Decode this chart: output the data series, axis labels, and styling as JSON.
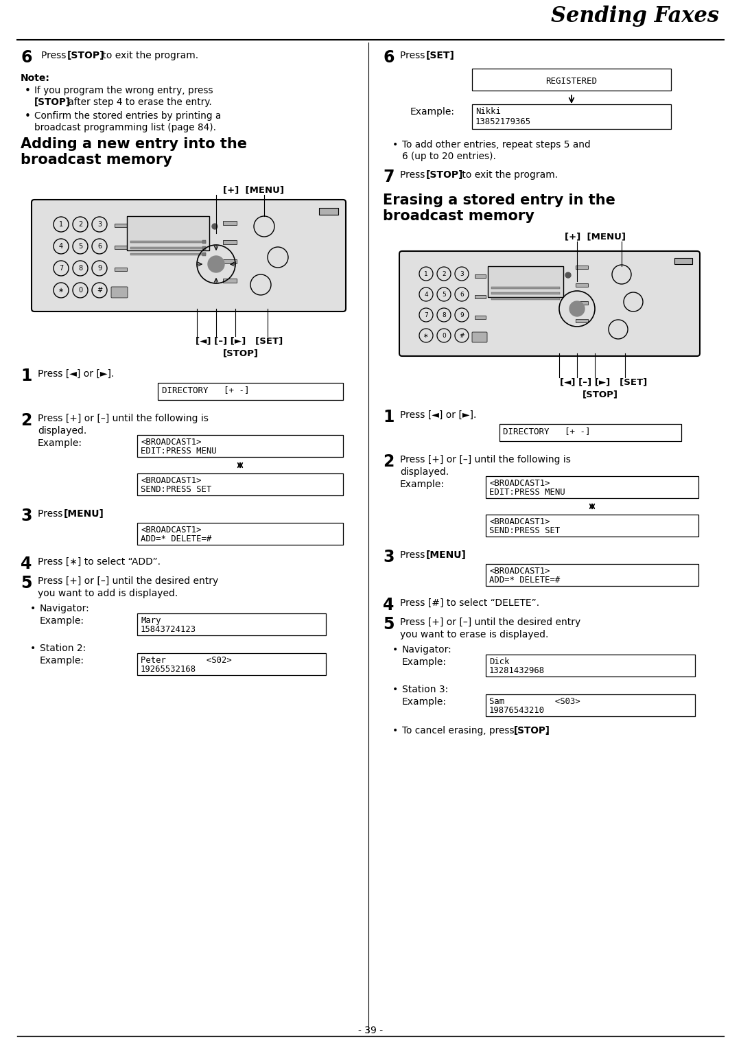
{
  "title": "Sending Faxes",
  "bg_color": "#ffffff",
  "page_num": "- 39 -",
  "left": {
    "step6_num": "6",
    "step6_text1": "Press ",
    "step6_bold": "[STOP]",
    "step6_text2": " to exit the program.",
    "note_title": "Note:",
    "bullet1_line1": "If you program the wrong entry, press",
    "bullet1_bold": "[STOP]",
    "bullet1_line2": " after step 4 to erase the entry.",
    "bullet2_line1": "Confirm the stored entries by printing a",
    "bullet2_line2": "broadcast programming list (page 84).",
    "sec1_title1": "Adding a new entry into the",
    "sec1_title2": "broadcast memory",
    "diag1_label1": "[+]  [MENU]",
    "diag1_label2": "[◄] [–] [►]   [SET]",
    "diag1_label3": "[STOP]",
    "s1_num": "1",
    "s1_text": "Press [◄] or [►].",
    "s1_disp": "DIRECTORY   [+ -]",
    "s2_num": "2",
    "s2_text1": "Press [+] or [–] until the following is",
    "s2_text2": "displayed.",
    "s2_example": "Example:",
    "s2_disp1_l1": "<BROADCAST1>",
    "s2_disp1_l2": "EDIT:PRESS MENU",
    "s2_disp2_l1": "<BROADCAST1>",
    "s2_disp2_l2": "SEND:PRESS SET",
    "s3_num": "3",
    "s3_text1": "Press ",
    "s3_bold": "[MENU]",
    "s3_text2": ".",
    "s3_disp_l1": "<BROADCAST1>",
    "s3_disp_l2": "ADD=* DELETE=#",
    "s4_num": "4",
    "s4_text1": "Press [",
    "s4_star": "∗",
    "s4_text2": "] to select “ADD”.",
    "s5_num": "5",
    "s5_text1": "Press [+] or [–] until the desired entry",
    "s5_text2": "you want to add is displayed.",
    "s5_nav": "Navigator:",
    "s5_nav_ex": "Example:",
    "s5_nav_l1": "Mary",
    "s5_nav_l2": "15843724123",
    "s5_sta": "Station 2:",
    "s5_sta_ex": "Example:",
    "s5_sta_l1": "Peter        <S02>",
    "s5_sta_l2": "19265532168"
  },
  "right": {
    "s6_num": "6",
    "s6_text1": "Press ",
    "s6_bold": "[SET]",
    "s6_text2": ".",
    "s6_disp_reg": "REGISTERED",
    "s6_ex": "Example:",
    "s6_ex_l1": "Nikki",
    "s6_ex_l2": "13852179365",
    "s6_note1": "To add other entries, repeat steps 5 and",
    "s6_note2": "6 (up to 20 entries).",
    "s7_num": "7",
    "s7_text1": "Press ",
    "s7_bold": "[STOP]",
    "s7_text2": " to exit the program.",
    "sec2_title1": "Erasing a stored entry in the",
    "sec2_title2": "broadcast memory",
    "diag2_label1": "[+]  [MENU]",
    "diag2_label2": "[◄] [–] [►]   [SET]",
    "diag2_label3": "[STOP]",
    "r1_num": "1",
    "r1_text": "Press [◄] or [►].",
    "r1_disp": "DIRECTORY   [+ -]",
    "r2_num": "2",
    "r2_text1": "Press [+] or [–] until the following is",
    "r2_text2": "displayed.",
    "r2_ex": "Example:",
    "r2_disp1_l1": "<BROADCAST1>",
    "r2_disp1_l2": "EDIT:PRESS MENU",
    "r2_disp2_l1": "<BROADCAST1>",
    "r2_disp2_l2": "SEND:PRESS SET",
    "r3_num": "3",
    "r3_text1": "Press ",
    "r3_bold": "[MENU]",
    "r3_text2": ".",
    "r3_disp_l1": "<BROADCAST1>",
    "r3_disp_l2": "ADD=* DELETE=#",
    "r4_num": "4",
    "r4_text": "Press [#] to select “DELETE”.",
    "r5_num": "5",
    "r5_text1": "Press [+] or [–] until the desired entry",
    "r5_text2": "you want to erase is displayed.",
    "r5_nav": "Navigator:",
    "r5_nav_ex": "Example:",
    "r5_nav_l1": "Dick",
    "r5_nav_l2": "13281432968",
    "r5_sta": "Station 3:",
    "r5_sta_ex": "Example:",
    "r5_sta_l1": "Sam          <S03>",
    "r5_sta_l2": "19876543210",
    "cancel1": "To cancel erasing, press ",
    "cancel_bold": "[STOP]",
    "cancel2": "."
  }
}
